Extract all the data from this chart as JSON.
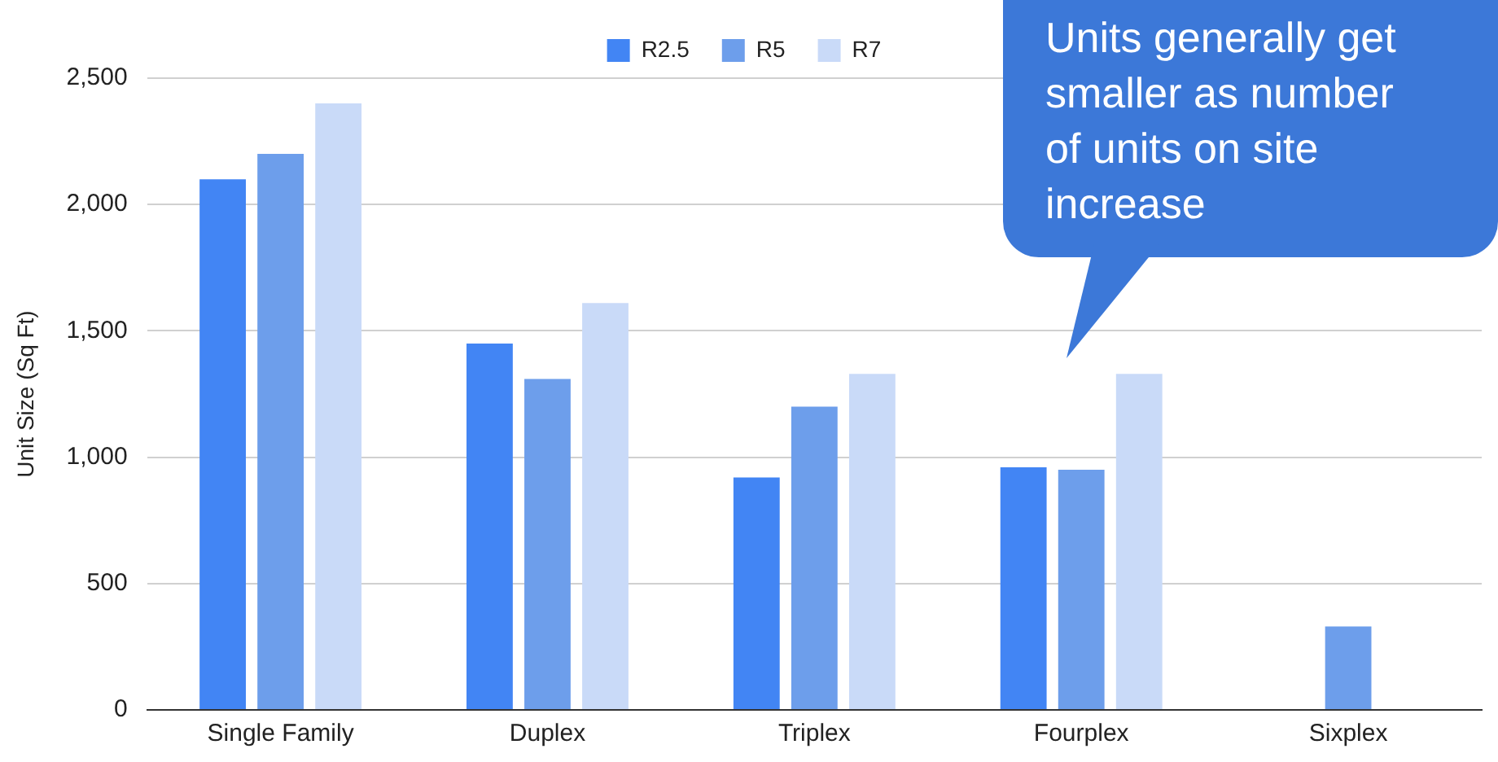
{
  "chart_data": {
    "type": "bar",
    "ylabel": "Unit Size (Sq Ft)",
    "categories": [
      "Single Family",
      "Duplex",
      "Triplex",
      "Fourplex",
      "Sixplex"
    ],
    "series": [
      {
        "name": "R2.5",
        "color": "#4285f4",
        "values": [
          2100,
          1450,
          920,
          960,
          null
        ]
      },
      {
        "name": "R5",
        "color": "#6d9eeb",
        "values": [
          2200,
          1310,
          1200,
          950,
          330
        ]
      },
      {
        "name": "R7",
        "color": "#c9daf8",
        "values": [
          2400,
          1610,
          1330,
          1330,
          null
        ]
      }
    ],
    "ylim": [
      0,
      2500
    ],
    "yticks": [
      {
        "value": 0,
        "label": "0"
      },
      {
        "value": 500,
        "label": "500"
      },
      {
        "value": 1000,
        "label": "1,000"
      },
      {
        "value": 1500,
        "label": "1,500"
      },
      {
        "value": 2000,
        "label": "2,000"
      },
      {
        "value": 2500,
        "label": "2,500"
      }
    ],
    "grid": "y",
    "legend": "top",
    "annotations": [
      "Units generally get smaller as number of units on site increase"
    ]
  }
}
